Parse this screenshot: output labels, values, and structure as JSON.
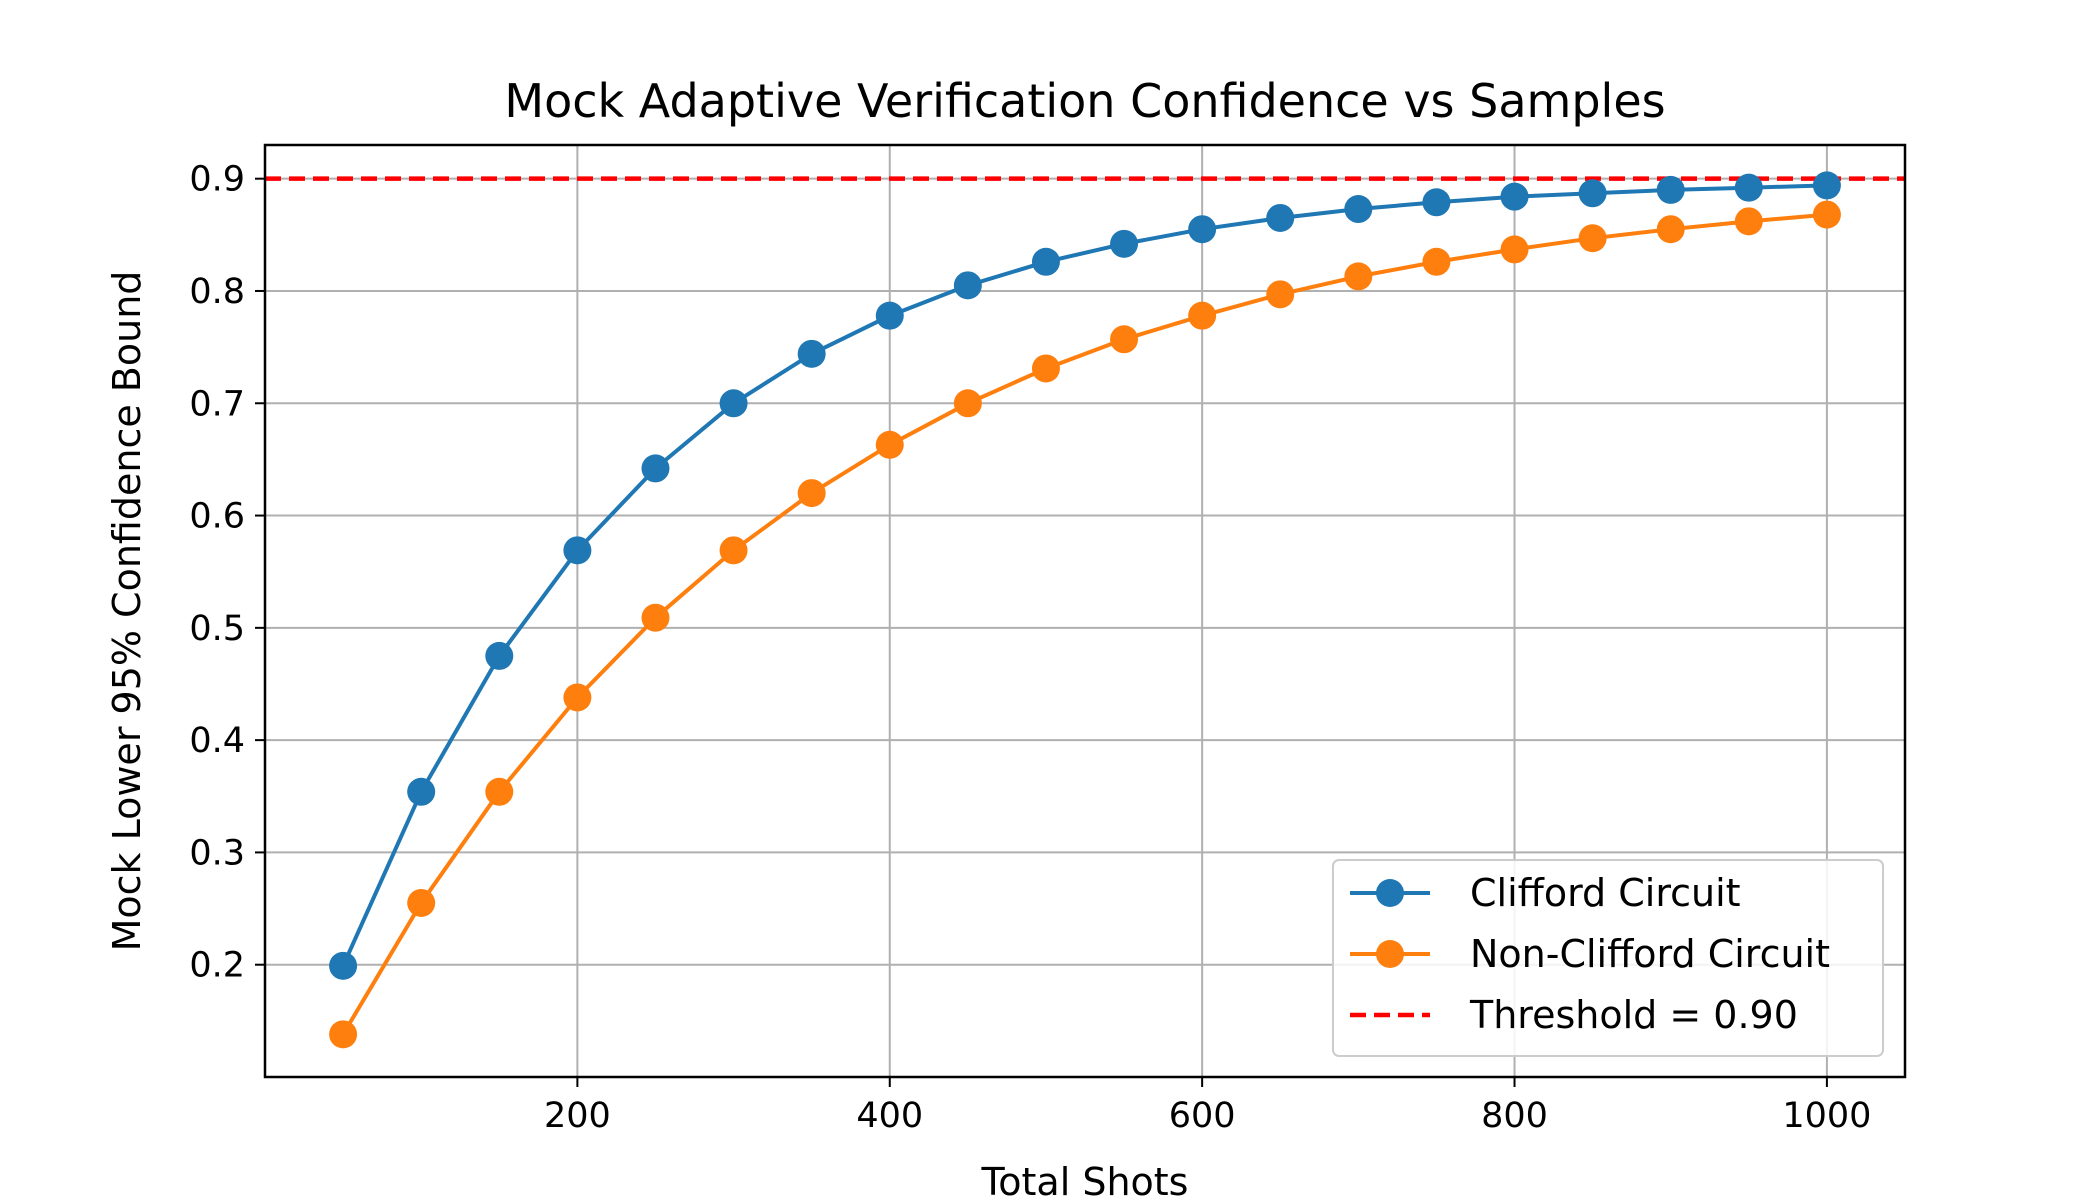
{
  "chart_data": {
    "type": "line",
    "title": "Mock Adaptive Verification Confidence vs Samples",
    "xlabel": "Total Shots",
    "ylabel": "Mock Lower 95% Confidence Bound",
    "xlim": [
      0,
      1050
    ],
    "ylim": [
      0.1,
      0.93
    ],
    "xticks": [
      200,
      400,
      600,
      800,
      1000
    ],
    "xtick_labels": [
      "200",
      "400",
      "600",
      "800",
      "1000"
    ],
    "yticks": [
      0.2,
      0.3,
      0.4,
      0.5,
      0.6,
      0.7,
      0.8,
      0.9
    ],
    "ytick_labels": [
      "0.2",
      "0.3",
      "0.4",
      "0.5",
      "0.6",
      "0.7",
      "0.8",
      "0.9"
    ],
    "grid": true,
    "legend_position": "bottom-right",
    "x": [
      50,
      100,
      150,
      200,
      250,
      300,
      350,
      400,
      450,
      500,
      550,
      600,
      650,
      700,
      750,
      800,
      850,
      900,
      950,
      1000
    ],
    "series": [
      {
        "name": "Clifford Circuit",
        "color": "#1f77b4",
        "marker": "circle",
        "values": [
          0.199,
          0.354,
          0.475,
          0.569,
          0.642,
          0.7,
          0.744,
          0.778,
          0.805,
          0.826,
          0.842,
          0.855,
          0.865,
          0.873,
          0.879,
          0.884,
          0.887,
          0.89,
          0.892,
          0.894
        ]
      },
      {
        "name": "Non-Clifford Circuit",
        "color": "#ff7f0e",
        "marker": "circle",
        "values": [
          0.138,
          0.255,
          0.354,
          0.438,
          0.509,
          0.569,
          0.62,
          0.663,
          0.7,
          0.731,
          0.757,
          0.778,
          0.797,
          0.813,
          0.826,
          0.837,
          0.847,
          0.855,
          0.862,
          0.868
        ]
      }
    ],
    "threshold": {
      "name": "Threshold = 0.90",
      "value": 0.9,
      "color": "#ff0000",
      "style": "dashed"
    }
  }
}
